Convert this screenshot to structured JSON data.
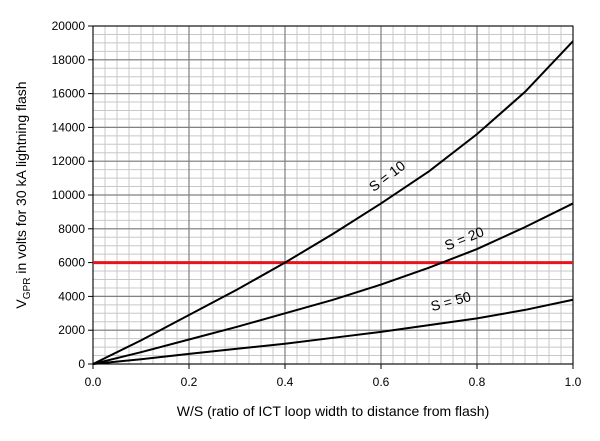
{
  "chart_data": {
    "type": "line",
    "xlabel": "W/S (ratio of ICT loop width to distance from flash)",
    "ylabel": {
      "main": "V",
      "sub": "GPR",
      "rest": " in volts for 30 kA lightning flash"
    },
    "x": [
      0,
      0.1,
      0.2,
      0.3,
      0.4,
      0.5,
      0.6,
      0.7,
      0.8,
      0.9,
      1.0
    ],
    "series": [
      {
        "name": "S = 10",
        "color": "#000000",
        "values": [
          0,
          1400,
          2900,
          4400,
          6000,
          7700,
          9500,
          11400,
          13600,
          16100,
          19100
        ]
      },
      {
        "name": "S = 20",
        "color": "#000000",
        "values": [
          0,
          700,
          1450,
          2200,
          3000,
          3800,
          4700,
          5700,
          6800,
          8100,
          9500
        ]
      },
      {
        "name": "S = 50",
        "color": "#000000",
        "values": [
          0,
          280,
          600,
          900,
          1200,
          1550,
          1900,
          2300,
          2700,
          3200,
          3800
        ]
      }
    ],
    "reference_line": {
      "value": 6000,
      "color": "#e8141b"
    },
    "xlim": [
      0,
      1.0
    ],
    "ylim": [
      0,
      20000
    ],
    "xticks": [
      {
        "value": 0,
        "label": "0.0"
      },
      0.2,
      0.4,
      0.6,
      0.8,
      {
        "value": 1.0,
        "label": "1.0"
      }
    ],
    "yticks": [
      0,
      2000,
      4000,
      6000,
      8000,
      10000,
      12000,
      14000,
      16000,
      18000,
      20000
    ],
    "grid": true,
    "x_minor_step": 0.025,
    "y_minor_step": 500
  }
}
